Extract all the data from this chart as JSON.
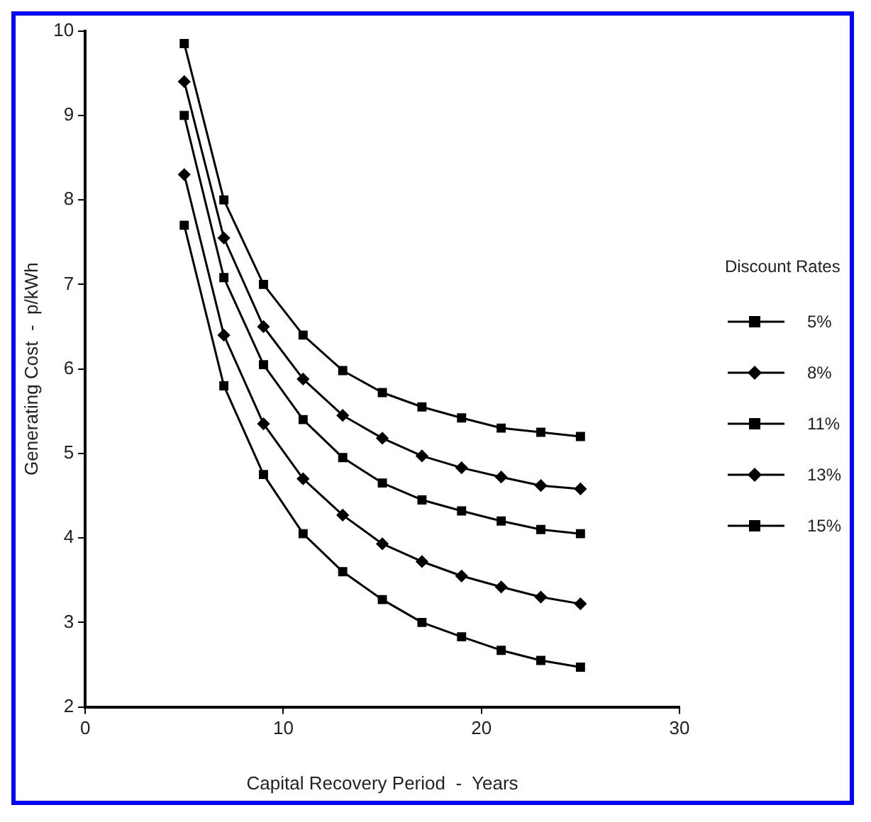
{
  "chart_data": {
    "type": "line",
    "xlabel": "Capital Recovery Period  -  Years",
    "ylabel": "Generating Cost  -  p/kWh",
    "legend_title": "Discount Rates",
    "legend": "right",
    "grid": false,
    "line_style": "solid",
    "xlim": [
      0,
      30
    ],
    "ylim": [
      2,
      10
    ],
    "xticks": [
      0,
      10,
      20,
      30
    ],
    "yticks": [
      2,
      3,
      4,
      5,
      6,
      7,
      8,
      9,
      10
    ],
    "x": [
      5,
      7,
      9,
      11,
      13,
      15,
      17,
      19,
      21,
      23,
      25
    ],
    "series": [
      {
        "name": "5%",
        "color": "#000000",
        "marker": "square",
        "values": [
          7.7,
          5.8,
          4.75,
          4.05,
          3.6,
          3.27,
          3.0,
          2.83,
          2.67,
          2.55,
          2.47
        ]
      },
      {
        "name": "8%",
        "color": "#000000",
        "marker": "diamond",
        "values": [
          8.3,
          6.4,
          5.35,
          4.7,
          4.27,
          3.93,
          3.72,
          3.55,
          3.42,
          3.3,
          3.22
        ]
      },
      {
        "name": "11%",
        "color": "#000000",
        "marker": "square",
        "values": [
          9.0,
          7.08,
          6.05,
          5.4,
          4.95,
          4.65,
          4.45,
          4.32,
          4.2,
          4.1,
          4.05
        ]
      },
      {
        "name": "13%",
        "color": "#000000",
        "marker": "diamond",
        "values": [
          9.4,
          7.55,
          6.5,
          5.88,
          5.45,
          5.18,
          4.97,
          4.83,
          4.72,
          4.62,
          4.58
        ]
      },
      {
        "name": "15%",
        "color": "#000000",
        "marker": "square",
        "values": [
          9.85,
          8.0,
          7.0,
          6.4,
          5.98,
          5.72,
          5.55,
          5.42,
          5.3,
          5.25,
          5.2
        ]
      }
    ]
  }
}
